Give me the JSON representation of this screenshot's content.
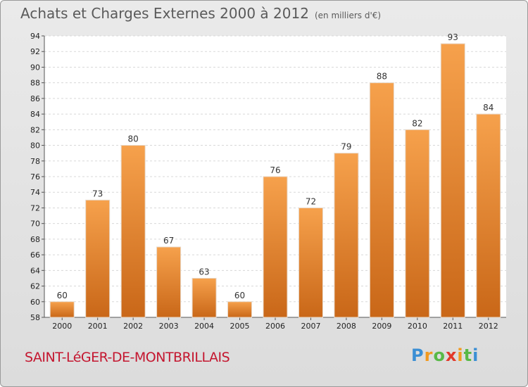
{
  "title": "Achats et Charges Externes 2000 à 2012",
  "subtitle": "(en milliers d'€)",
  "town": "SAINT-LéGER-DE-MONTBRILLAIS",
  "logo": {
    "text": "Proxiti"
  },
  "colors": {
    "bar_light": "#f6a14c",
    "bar_dark": "#c96718",
    "town": "#c4162f"
  },
  "chart_data": {
    "type": "bar",
    "title": "Achats et Charges Externes 2000 à 2012",
    "subtitle": "(en milliers d'€)",
    "categories": [
      "2000",
      "2001",
      "2002",
      "2003",
      "2004",
      "2005",
      "2006",
      "2007",
      "2008",
      "2009",
      "2010",
      "2011",
      "2012"
    ],
    "values": [
      60,
      73,
      80,
      67,
      63,
      60,
      76,
      72,
      79,
      88,
      82,
      93,
      84
    ],
    "ylim": [
      58,
      94
    ],
    "yticks": [
      58,
      60,
      62,
      64,
      66,
      68,
      70,
      72,
      74,
      76,
      78,
      80,
      82,
      84,
      86,
      88,
      90,
      92,
      94
    ],
    "grid": true,
    "legend": "none"
  }
}
